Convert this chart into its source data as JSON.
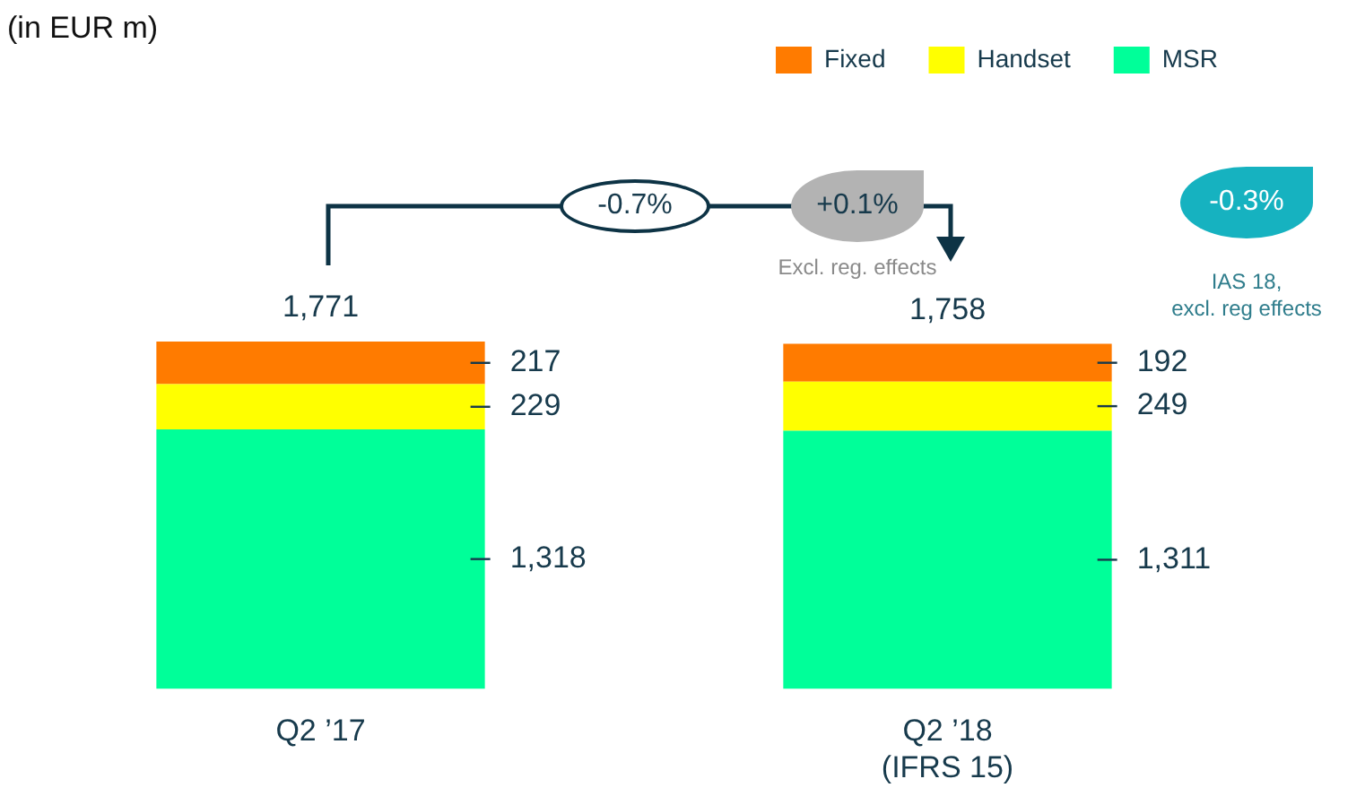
{
  "chart_data": {
    "type": "bar",
    "title": "(in EUR m)",
    "categories": [
      "Q2 ’17",
      "Q2 ’18\n(IFRS 15)"
    ],
    "stacked": true,
    "series": [
      {
        "name": "MSR",
        "color": "#00ff99",
        "values": [
          1318,
          1311
        ],
        "value_labels": [
          "1,318",
          "1,311"
        ]
      },
      {
        "name": "Handset",
        "color": "#ffff00",
        "values": [
          229,
          249
        ],
        "value_labels": [
          "229",
          "249"
        ]
      },
      {
        "name": "Fixed",
        "color": "#ff7b00",
        "values": [
          217,
          192
        ],
        "value_labels": [
          "217",
          "192"
        ]
      }
    ],
    "tick_labels": "x",
    "grid": false,
    "legend": "top right",
    "annotations": [
      "-0.7%",
      "+0.1%",
      "Excl. reg. effects",
      "-0.3%",
      "IAS 18,\nexcl. reg effects",
      {
        "text": "1,771",
        "x": "Q2 ’17",
        "y": 1764
      },
      {
        "text": "1,758",
        "x": "Q2 ’18\n(IFRS 15)",
        "y": 1752
      }
    ]
  }
}
